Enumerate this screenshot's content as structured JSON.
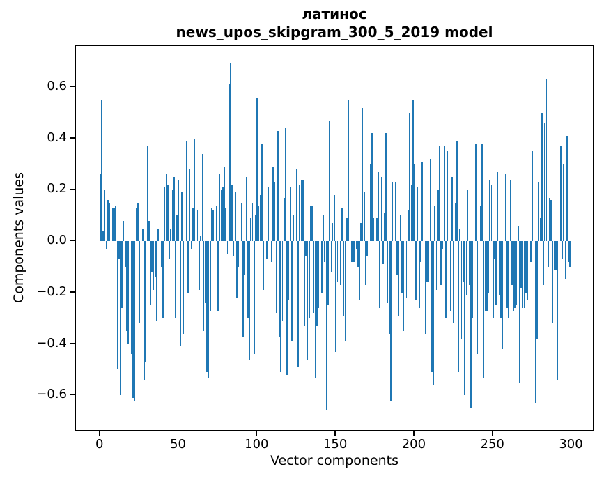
{
  "title": {
    "line1": "латинос",
    "line2": "news_upos_skipgram_300_5_2019 model"
  },
  "axes": {
    "xlabel": "Vector components",
    "ylabel": "Components values",
    "x_ticks": [
      0,
      50,
      100,
      150,
      200,
      250,
      300
    ],
    "x_tick_labels": [
      "0",
      "50",
      "100",
      "150",
      "200",
      "250",
      "300"
    ],
    "y_ticks": [
      0.6,
      0.4,
      0.2,
      0.0,
      -0.2,
      -0.4,
      -0.6
    ],
    "y_tick_labels": [
      "0.6",
      "0.4",
      "0.2",
      "0.0",
      "−0.2",
      "−0.4",
      "−0.6"
    ]
  },
  "colors": {
    "bar": "#1f77b4",
    "spine": "#000000",
    "background": "#ffffff"
  },
  "chart_data": {
    "type": "bar",
    "title": "латинос — news_upos_skipgram_300_5_2019 model",
    "xlabel": "Vector components",
    "ylabel": "Components values",
    "xlim": [
      -15.4,
      314.4
    ],
    "ylim": [
      -0.74,
      0.76
    ],
    "grid": false,
    "legend": null,
    "bar_color": "#1f77b4",
    "n_components": 300,
    "values": [
      0.26,
      0.55,
      0.04,
      0.2,
      -0.03,
      0.16,
      0.15,
      -0.06,
      0.13,
      0.13,
      0.14,
      -0.5,
      -0.07,
      -0.6,
      -0.26,
      0.08,
      -0.1,
      -0.35,
      -0.4,
      0.37,
      -0.44,
      -0.61,
      -0.62,
      0.13,
      0.15,
      -0.32,
      -0.06,
      0.05,
      -0.54,
      -0.47,
      0.37,
      0.08,
      -0.25,
      -0.12,
      -0.19,
      -0.14,
      -0.31,
      0.05,
      0.34,
      -0.1,
      -0.3,
      0.21,
      0.26,
      0.22,
      -0.07,
      0.05,
      0.2,
      0.25,
      -0.3,
      0.1,
      0.24,
      -0.41,
      0.19,
      -0.36,
      0.31,
      0.39,
      -0.2,
      0.28,
      -0.03,
      0.13,
      0.4,
      -0.43,
      0.12,
      -0.19,
      0.02,
      0.34,
      -0.35,
      -0.24,
      -0.51,
      -0.53,
      -0.27,
      0.13,
      0.12,
      0.46,
      0.14,
      -0.27,
      0.26,
      0.2,
      0.21,
      0.29,
      0.13,
      -0.05,
      0.61,
      0.695,
      0.22,
      -0.06,
      0.19,
      -0.22,
      -0.1,
      0.39,
      0.15,
      -0.37,
      -0.13,
      0.25,
      -0.3,
      -0.46,
      0.09,
      0.15,
      -0.44,
      0.1,
      0.56,
      0.14,
      0.18,
      0.38,
      -0.19,
      0.4,
      -0.07,
      0.21,
      -0.35,
      -0.08,
      0.29,
      0.23,
      -0.28,
      0.43,
      -0.37,
      -0.51,
      -0.31,
      0.17,
      0.44,
      -0.52,
      -0.23,
      0.21,
      -0.39,
      0.1,
      -0.35,
      0.28,
      -0.49,
      0.22,
      0.24,
      0.24,
      -0.33,
      -0.06,
      -0.46,
      -0.3,
      0.14,
      0.14,
      -0.28,
      -0.53,
      -0.33,
      -0.26,
      0.06,
      -0.2,
      0.1,
      -0.08,
      -0.66,
      -0.25,
      0.47,
      -0.12,
      0.07,
      0.18,
      -0.43,
      -0.16,
      0.24,
      -0.17,
      0.13,
      -0.29,
      -0.39,
      0.09,
      0.55,
      -0.05,
      -0.08,
      -0.08,
      -0.08,
      -0.03,
      -0.1,
      -0.23,
      0.07,
      0.52,
      0.19,
      -0.17,
      -0.06,
      -0.23,
      0.3,
      0.42,
      0.09,
      0.31,
      0.09,
      0.27,
      -0.26,
      0.25,
      -0.09,
      0.11,
      0.42,
      -0.24,
      -0.36,
      -0.62,
      0.23,
      0.27,
      0.23,
      -0.13,
      -0.29,
      0.1,
      -0.2,
      -0.35,
      0.09,
      -0.22,
      0.12,
      0.5,
      0.22,
      0.55,
      0.3,
      -0.23,
      0.21,
      -0.26,
      -0.08,
      0.31,
      -0.16,
      -0.36,
      -0.16,
      -0.16,
      0.32,
      -0.51,
      -0.56,
      0.14,
      -0.19,
      0.2,
      0.37,
      -0.17,
      -0.03,
      0.37,
      -0.3,
      0.35,
      0.2,
      -0.27,
      0.25,
      -0.32,
      0.15,
      0.39,
      -0.51,
      0.05,
      -0.38,
      -0.16,
      -0.6,
      -0.21,
      0.2,
      -0.17,
      -0.65,
      -0.3,
      0.05,
      0.38,
      -0.44,
      0.21,
      0.14,
      0.38,
      -0.53,
      -0.27,
      -0.27,
      -0.2,
      0.24,
      0.22,
      -0.3,
      -0.07,
      -0.25,
      0.27,
      -0.21,
      -0.3,
      -0.42,
      0.33,
      0.26,
      -0.26,
      -0.3,
      0.24,
      -0.17,
      -0.27,
      -0.26,
      -0.25,
      0.06,
      -0.55,
      -0.18,
      -0.26,
      -0.26,
      -0.2,
      -0.23,
      -0.3,
      -0.08,
      0.35,
      -0.12,
      -0.63,
      -0.38,
      0.23,
      0.09,
      0.5,
      -0.17,
      0.46,
      0.63,
      -0.1,
      0.17,
      0.16,
      -0.32,
      -0.11,
      -0.11,
      -0.54,
      -0.12,
      0.37,
      -0.07,
      0.3,
      -0.15,
      0.41,
      -0.08,
      -0.1
    ]
  }
}
